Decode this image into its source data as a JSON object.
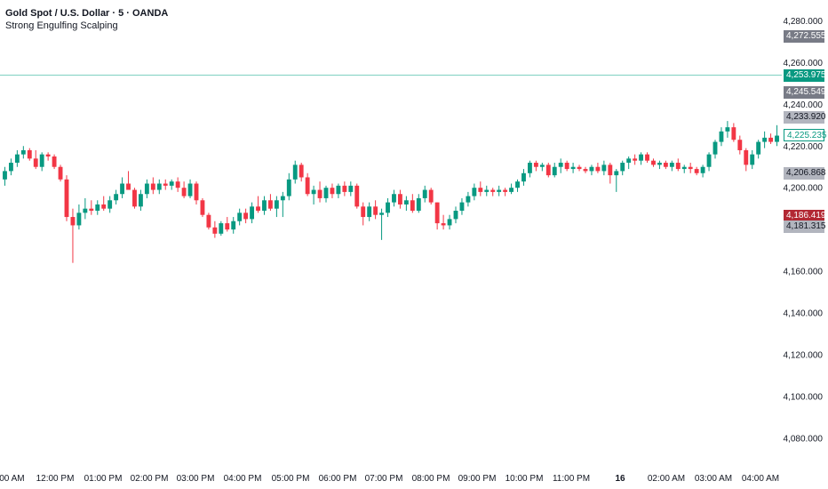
{
  "chart": {
    "title": "Gold Spot / U.S. Dollar · 5 · OANDA",
    "indicator": "Strong Engulfing Scalping"
  },
  "colors": {
    "up": "#089981",
    "down": "#f23645",
    "down_dark": "#b22833",
    "grid": "#ffffff",
    "hline": "#7fd0c2",
    "tag_grey": "#787b86",
    "tag_light": "#b2b5be",
    "tag_green": "#089981",
    "tag_red": "#b22833",
    "text": "#131722"
  },
  "price_tags": [
    {
      "label": "4,272.555",
      "value": 4272.555,
      "style": "grey"
    },
    {
      "label": "4,253.975",
      "value": 4253.975,
      "style": "green"
    },
    {
      "label": "4,245.549",
      "value": 4245.549,
      "style": "grey"
    },
    {
      "label": "4,233.920",
      "value": 4233.92,
      "style": "light"
    },
    {
      "label": "4,225.235",
      "value": 4225.235,
      "style": "outline"
    },
    {
      "label": "4,206.868",
      "value": 4206.868,
      "style": "light"
    },
    {
      "label": "4,186.419",
      "value": 4186.419,
      "style": "red"
    },
    {
      "label": "4,181.315",
      "value": 4181.315,
      "style": "light"
    }
  ],
  "chart_data": {
    "type": "candlestick",
    "title": "Gold Spot / U.S. Dollar · 5 · OANDA",
    "ylim": [
      4065,
      4290
    ],
    "y_ticks": [
      {
        "value": 4280,
        "label": "4,280.000"
      },
      {
        "value": 4260,
        "label": "4,260.000"
      },
      {
        "value": 4240,
        "label": "4,240.000"
      },
      {
        "value": 4220,
        "label": "4,220.000"
      },
      {
        "value": 4200,
        "label": "4,200.000"
      },
      {
        "value": 4160,
        "label": "4,160.000"
      },
      {
        "value": 4140,
        "label": "4,140.000"
      },
      {
        "value": 4120,
        "label": "4,120.000"
      },
      {
        "value": 4100,
        "label": "4,100.000"
      },
      {
        "value": 4080,
        "label": "4,080.000"
      }
    ],
    "x_labels": [
      ":00 AM",
      "12:00 PM",
      "01:00 PM",
      "02:00 PM",
      "03:00 PM",
      "04:00 PM",
      "05:00 PM",
      "06:00 PM",
      "07:00 PM",
      "08:00 PM",
      "09:00 PM",
      "10:00 PM",
      "11:00 PM",
      "16",
      "02:00 AM",
      "03:00 AM",
      "04:00 AM"
    ],
    "horizontal_line": 4253.975,
    "candles": [
      {
        "o": 4204,
        "h": 4210,
        "l": 4201,
        "c": 4208
      },
      {
        "o": 4208,
        "h": 4214,
        "l": 4206,
        "c": 4212
      },
      {
        "o": 4212,
        "h": 4218,
        "l": 4210,
        "c": 4216
      },
      {
        "o": 4216,
        "h": 4220,
        "l": 4214,
        "c": 4218
      },
      {
        "o": 4218,
        "h": 4219,
        "l": 4213,
        "c": 4214
      },
      {
        "o": 4214,
        "h": 4218,
        "l": 4209,
        "c": 4210
      },
      {
        "o": 4210,
        "h": 4217,
        "l": 4208,
        "c": 4216
      },
      {
        "o": 4216,
        "h": 4217,
        "l": 4213,
        "c": 4215
      },
      {
        "o": 4215,
        "h": 4216,
        "l": 4209,
        "c": 4210
      },
      {
        "o": 4210,
        "h": 4211,
        "l": 4203,
        "c": 4204
      },
      {
        "o": 4204,
        "h": 4206,
        "l": 4184,
        "c": 4186
      },
      {
        "o": 4186,
        "h": 4190,
        "l": 4164,
        "c": 4182
      },
      {
        "o": 4182,
        "h": 4192,
        "l": 4180,
        "c": 4188
      },
      {
        "o": 4188,
        "h": 4195,
        "l": 4185,
        "c": 4190
      },
      {
        "o": 4190,
        "h": 4194,
        "l": 4187,
        "c": 4189
      },
      {
        "o": 4189,
        "h": 4194,
        "l": 4187,
        "c": 4192
      },
      {
        "o": 4192,
        "h": 4196,
        "l": 4189,
        "c": 4190
      },
      {
        "o": 4190,
        "h": 4196,
        "l": 4188,
        "c": 4194
      },
      {
        "o": 4194,
        "h": 4199,
        "l": 4192,
        "c": 4197
      },
      {
        "o": 4197,
        "h": 4205,
        "l": 4195,
        "c": 4202
      },
      {
        "o": 4202,
        "h": 4208,
        "l": 4200,
        "c": 4199
      },
      {
        "o": 4199,
        "h": 4200,
        "l": 4190,
        "c": 4191
      },
      {
        "o": 4191,
        "h": 4199,
        "l": 4189,
        "c": 4197
      },
      {
        "o": 4197,
        "h": 4204,
        "l": 4195,
        "c": 4202
      },
      {
        "o": 4202,
        "h": 4205,
        "l": 4197,
        "c": 4199
      },
      {
        "o": 4199,
        "h": 4204,
        "l": 4197,
        "c": 4202
      },
      {
        "o": 4202,
        "h": 4204,
        "l": 4199,
        "c": 4201
      },
      {
        "o": 4201,
        "h": 4204,
        "l": 4199,
        "c": 4203
      },
      {
        "o": 4203,
        "h": 4205,
        "l": 4198,
        "c": 4200
      },
      {
        "o": 4200,
        "h": 4203,
        "l": 4195,
        "c": 4196
      },
      {
        "o": 4196,
        "h": 4204,
        "l": 4195,
        "c": 4202
      },
      {
        "o": 4202,
        "h": 4203,
        "l": 4192,
        "c": 4194
      },
      {
        "o": 4194,
        "h": 4195,
        "l": 4186,
        "c": 4187
      },
      {
        "o": 4187,
        "h": 4188,
        "l": 4180,
        "c": 4181
      },
      {
        "o": 4181,
        "h": 4184,
        "l": 4176,
        "c": 4178
      },
      {
        "o": 4178,
        "h": 4184,
        "l": 4177,
        "c": 4183
      },
      {
        "o": 4183,
        "h": 4186,
        "l": 4179,
        "c": 4180
      },
      {
        "o": 4180,
        "h": 4186,
        "l": 4178,
        "c": 4184
      },
      {
        "o": 4184,
        "h": 4190,
        "l": 4182,
        "c": 4188
      },
      {
        "o": 4188,
        "h": 4190,
        "l": 4183,
        "c": 4185
      },
      {
        "o": 4185,
        "h": 4193,
        "l": 4183,
        "c": 4191
      },
      {
        "o": 4191,
        "h": 4196,
        "l": 4188,
        "c": 4189
      },
      {
        "o": 4189,
        "h": 4196,
        "l": 4187,
        "c": 4194
      },
      {
        "o": 4194,
        "h": 4197,
        "l": 4189,
        "c": 4190
      },
      {
        "o": 4190,
        "h": 4196,
        "l": 4186,
        "c": 4194
      },
      {
        "o": 4194,
        "h": 4198,
        "l": 4186,
        "c": 4196
      },
      {
        "o": 4196,
        "h": 4207,
        "l": 4194,
        "c": 4204
      },
      {
        "o": 4204,
        "h": 4213,
        "l": 4202,
        "c": 4211
      },
      {
        "o": 4211,
        "h": 4212,
        "l": 4203,
        "c": 4205
      },
      {
        "o": 4205,
        "h": 4207,
        "l": 4196,
        "c": 4197
      },
      {
        "o": 4197,
        "h": 4201,
        "l": 4192,
        "c": 4199
      },
      {
        "o": 4199,
        "h": 4203,
        "l": 4193,
        "c": 4195
      },
      {
        "o": 4195,
        "h": 4201,
        "l": 4193,
        "c": 4200
      },
      {
        "o": 4200,
        "h": 4202,
        "l": 4195,
        "c": 4197
      },
      {
        "o": 4197,
        "h": 4202,
        "l": 4195,
        "c": 4201
      },
      {
        "o": 4201,
        "h": 4203,
        "l": 4196,
        "c": 4198
      },
      {
        "o": 4198,
        "h": 4203,
        "l": 4196,
        "c": 4201
      },
      {
        "o": 4201,
        "h": 4202,
        "l": 4190,
        "c": 4191
      },
      {
        "o": 4191,
        "h": 4193,
        "l": 4182,
        "c": 4186
      },
      {
        "o": 4186,
        "h": 4193,
        "l": 4184,
        "c": 4191
      },
      {
        "o": 4191,
        "h": 4194,
        "l": 4185,
        "c": 4187
      },
      {
        "o": 4187,
        "h": 4190,
        "l": 4175,
        "c": 4188
      },
      {
        "o": 4188,
        "h": 4195,
        "l": 4186,
        "c": 4193
      },
      {
        "o": 4193,
        "h": 4199,
        "l": 4191,
        "c": 4197
      },
      {
        "o": 4197,
        "h": 4199,
        "l": 4190,
        "c": 4192
      },
      {
        "o": 4192,
        "h": 4196,
        "l": 4189,
        "c": 4194
      },
      {
        "o": 4194,
        "h": 4197,
        "l": 4188,
        "c": 4189
      },
      {
        "o": 4189,
        "h": 4197,
        "l": 4188,
        "c": 4195
      },
      {
        "o": 4195,
        "h": 4201,
        "l": 4193,
        "c": 4199
      },
      {
        "o": 4199,
        "h": 4200,
        "l": 4192,
        "c": 4193
      },
      {
        "o": 4193,
        "h": 4193,
        "l": 4180,
        "c": 4183
      },
      {
        "o": 4183,
        "h": 4187,
        "l": 4180,
        "c": 4182
      },
      {
        "o": 4182,
        "h": 4187,
        "l": 4180,
        "c": 4185
      },
      {
        "o": 4185,
        "h": 4191,
        "l": 4183,
        "c": 4189
      },
      {
        "o": 4189,
        "h": 4195,
        "l": 4187,
        "c": 4193
      },
      {
        "o": 4193,
        "h": 4198,
        "l": 4191,
        "c": 4196
      },
      {
        "o": 4196,
        "h": 4202,
        "l": 4194,
        "c": 4200
      },
      {
        "o": 4200,
        "h": 4203,
        "l": 4196,
        "c": 4198
      },
      {
        "o": 4198,
        "h": 4201,
        "l": 4196,
        "c": 4199
      },
      {
        "o": 4199,
        "h": 4200,
        "l": 4196,
        "c": 4198
      },
      {
        "o": 4198,
        "h": 4201,
        "l": 4196,
        "c": 4199
      },
      {
        "o": 4199,
        "h": 4200,
        "l": 4196,
        "c": 4198
      },
      {
        "o": 4198,
        "h": 4202,
        "l": 4197,
        "c": 4200
      },
      {
        "o": 4200,
        "h": 4204,
        "l": 4198,
        "c": 4203
      },
      {
        "o": 4203,
        "h": 4209,
        "l": 4201,
        "c": 4207
      },
      {
        "o": 4207,
        "h": 4213,
        "l": 4205,
        "c": 4212
      },
      {
        "o": 4212,
        "h": 4213,
        "l": 4208,
        "c": 4210
      },
      {
        "o": 4210,
        "h": 4212,
        "l": 4208,
        "c": 4211
      },
      {
        "o": 4211,
        "h": 4212,
        "l": 4205,
        "c": 4206
      },
      {
        "o": 4206,
        "h": 4212,
        "l": 4205,
        "c": 4210
      },
      {
        "o": 4210,
        "h": 4214,
        "l": 4207,
        "c": 4212
      },
      {
        "o": 4212,
        "h": 4213,
        "l": 4208,
        "c": 4209
      },
      {
        "o": 4209,
        "h": 4212,
        "l": 4207,
        "c": 4210
      },
      {
        "o": 4210,
        "h": 4211,
        "l": 4208,
        "c": 4209
      },
      {
        "o": 4209,
        "h": 4210,
        "l": 4207,
        "c": 4208
      },
      {
        "o": 4208,
        "h": 4211,
        "l": 4206,
        "c": 4210
      },
      {
        "o": 4210,
        "h": 4212,
        "l": 4207,
        "c": 4208
      },
      {
        "o": 4208,
        "h": 4213,
        "l": 4206,
        "c": 4211
      },
      {
        "o": 4211,
        "h": 4212,
        "l": 4202,
        "c": 4206
      },
      {
        "o": 4206,
        "h": 4209,
        "l": 4198,
        "c": 4208
      },
      {
        "o": 4208,
        "h": 4213,
        "l": 4206,
        "c": 4212
      },
      {
        "o": 4212,
        "h": 4215,
        "l": 4209,
        "c": 4214
      },
      {
        "o": 4214,
        "h": 4216,
        "l": 4211,
        "c": 4213
      },
      {
        "o": 4213,
        "h": 4217,
        "l": 4211,
        "c": 4216
      },
      {
        "o": 4216,
        "h": 4217,
        "l": 4212,
        "c": 4213
      },
      {
        "o": 4213,
        "h": 4214,
        "l": 4210,
        "c": 4211
      },
      {
        "o": 4211,
        "h": 4213,
        "l": 4209,
        "c": 4212
      },
      {
        "o": 4212,
        "h": 4213,
        "l": 4209,
        "c": 4210
      },
      {
        "o": 4210,
        "h": 4213,
        "l": 4208,
        "c": 4212
      },
      {
        "o": 4212,
        "h": 4214,
        "l": 4208,
        "c": 4209
      },
      {
        "o": 4209,
        "h": 4211,
        "l": 4207,
        "c": 4210
      },
      {
        "o": 4210,
        "h": 4212,
        "l": 4207,
        "c": 4209
      },
      {
        "o": 4209,
        "h": 4210,
        "l": 4206,
        "c": 4207
      },
      {
        "o": 4207,
        "h": 4211,
        "l": 4205,
        "c": 4210
      },
      {
        "o": 4210,
        "h": 4217,
        "l": 4208,
        "c": 4216
      },
      {
        "o": 4216,
        "h": 4223,
        "l": 4214,
        "c": 4222
      },
      {
        "o": 4222,
        "h": 4229,
        "l": 4220,
        "c": 4227
      },
      {
        "o": 4227,
        "h": 4232,
        "l": 4224,
        "c": 4229
      },
      {
        "o": 4229,
        "h": 4231,
        "l": 4222,
        "c": 4223
      },
      {
        "o": 4223,
        "h": 4225,
        "l": 4216,
        "c": 4218
      },
      {
        "o": 4218,
        "h": 4219,
        "l": 4208,
        "c": 4211
      },
      {
        "o": 4211,
        "h": 4218,
        "l": 4209,
        "c": 4216
      },
      {
        "o": 4216,
        "h": 4223,
        "l": 4214,
        "c": 4222
      },
      {
        "o": 4222,
        "h": 4227,
        "l": 4219,
        "c": 4224
      },
      {
        "o": 4224,
        "h": 4226,
        "l": 4221,
        "c": 4222
      },
      {
        "o": 4222,
        "h": 4230,
        "l": 4220,
        "c": 4225
      }
    ]
  },
  "time_axis_labels": [
    ":00 AM",
    "12:00 PM",
    "01:00 PM",
    "02:00 PM",
    "03:00 PM",
    "04:00 PM",
    "05:00 PM",
    "06:00 PM",
    "07:00 PM",
    "08:00 PM",
    "09:00 PM",
    "10:00 PM",
    "11:00 PM",
    "16",
    "02:00 AM",
    "03:00 AM",
    "04:00 AM"
  ]
}
